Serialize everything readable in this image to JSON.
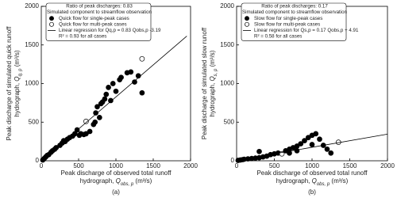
{
  "chart_data": [
    {
      "type": "scatter",
      "caption": "(a)",
      "xlim": [
        0,
        2000
      ],
      "ylim": [
        0,
        2000
      ],
      "xticks": [
        0,
        500,
        1000,
        1500,
        2000
      ],
      "yticks": [
        0,
        500,
        1000,
        1500,
        2000
      ],
      "xlabel": [
        "Peak discharge of observed total runoff",
        "hydrograph, ",
        "Q",
        "obs, p",
        " (m³/s)"
      ],
      "ylabel": [
        "Peak discharge of simulated quick runoff",
        "hydrograph, ",
        "Q",
        "q, p",
        " (m³/s)"
      ],
      "legend_title": [
        "Ratio of peak discharges: 0.83",
        "Simulated component to streamflow observation"
      ],
      "legend_note": "R² = 0.93 for all cases",
      "series": [
        {
          "name": "Quick flow for single-peak cases",
          "marker": "filled",
          "color": "#000000",
          "x": [
            20,
            40,
            60,
            80,
            100,
            130,
            150,
            180,
            200,
            250,
            280,
            300,
            320,
            350,
            380,
            420,
            450,
            480,
            510,
            530,
            570,
            600,
            650,
            700,
            720,
            730,
            750,
            780,
            800,
            820,
            850,
            870,
            900,
            930,
            960,
            1000,
            1050,
            1070,
            1150,
            1200,
            1250,
            1300,
            1350
          ],
          "values": [
            10,
            30,
            50,
            70,
            80,
            110,
            130,
            150,
            170,
            200,
            230,
            260,
            250,
            280,
            300,
            320,
            350,
            400,
            330,
            350,
            340,
            350,
            380,
            470,
            500,
            620,
            700,
            560,
            740,
            760,
            800,
            860,
            950,
            780,
            1000,
            900,
            1050,
            1080,
            1140,
            1150,
            1020,
            1100,
            880
          ]
        },
        {
          "name": "Quick flow for multi-peak cases",
          "marker": "open",
          "color": "#000000",
          "x": [
            600,
            1350
          ],
          "values": [
            510,
            1320
          ]
        },
        {
          "name": "Linear regression for Qq,p = 0.83 Qobs,p -3.19",
          "marker": "line",
          "color": "#000000",
          "x": [
            0,
            1950
          ],
          "values": [
            -3.19,
            1615
          ]
        }
      ]
    },
    {
      "type": "scatter",
      "caption": "(b)",
      "xlim": [
        0,
        2000
      ],
      "ylim": [
        0,
        2000
      ],
      "xticks": [
        0,
        500,
        1000,
        1500,
        2000
      ],
      "yticks": [
        0,
        500,
        1000,
        1500,
        2000
      ],
      "xlabel": [
        "Peak discharge of observed total runoff",
        "hydrograph, ",
        "Q",
        "obs, p",
        " (m³/s)"
      ],
      "ylabel": [
        "Peak discharge of simulated slow runoff",
        "hydrograph, ",
        "Q",
        "s, p",
        " (m³/s)"
      ],
      "legend_title": [
        "Ratio of peak discharges: 0.17",
        "Simulated component to streamflow observation"
      ],
      "legend_note": "R² = 0.58 for all cases",
      "series": [
        {
          "name": "Slow flow for single-peak cases",
          "marker": "filled",
          "color": "#000000",
          "x": [
            20,
            50,
            80,
            100,
            150,
            200,
            250,
            300,
            350,
            400,
            450,
            500,
            550,
            650,
            700,
            750,
            800,
            850,
            900,
            950,
            1000,
            1050,
            1100,
            1150,
            1200,
            1250,
            1000,
            800,
            700,
            300
          ],
          "values": [
            5,
            10,
            15,
            20,
            25,
            30,
            35,
            40,
            50,
            60,
            80,
            90,
            100,
            130,
            150,
            170,
            190,
            220,
            260,
            300,
            330,
            350,
            280,
            200,
            150,
            100,
            210,
            130,
            100,
            120
          ]
        },
        {
          "name": "Slow flow for multi-peak cases",
          "marker": "open",
          "color": "#000000",
          "x": [
            600,
            1350
          ],
          "values": [
            90,
            240
          ]
        },
        {
          "name": "Linear regression for Qs,p = 0.17 Qobs,p + 4.91",
          "marker": "line",
          "color": "#000000",
          "x": [
            0,
            2000
          ],
          "values": [
            4.91,
            345
          ]
        }
      ]
    }
  ]
}
